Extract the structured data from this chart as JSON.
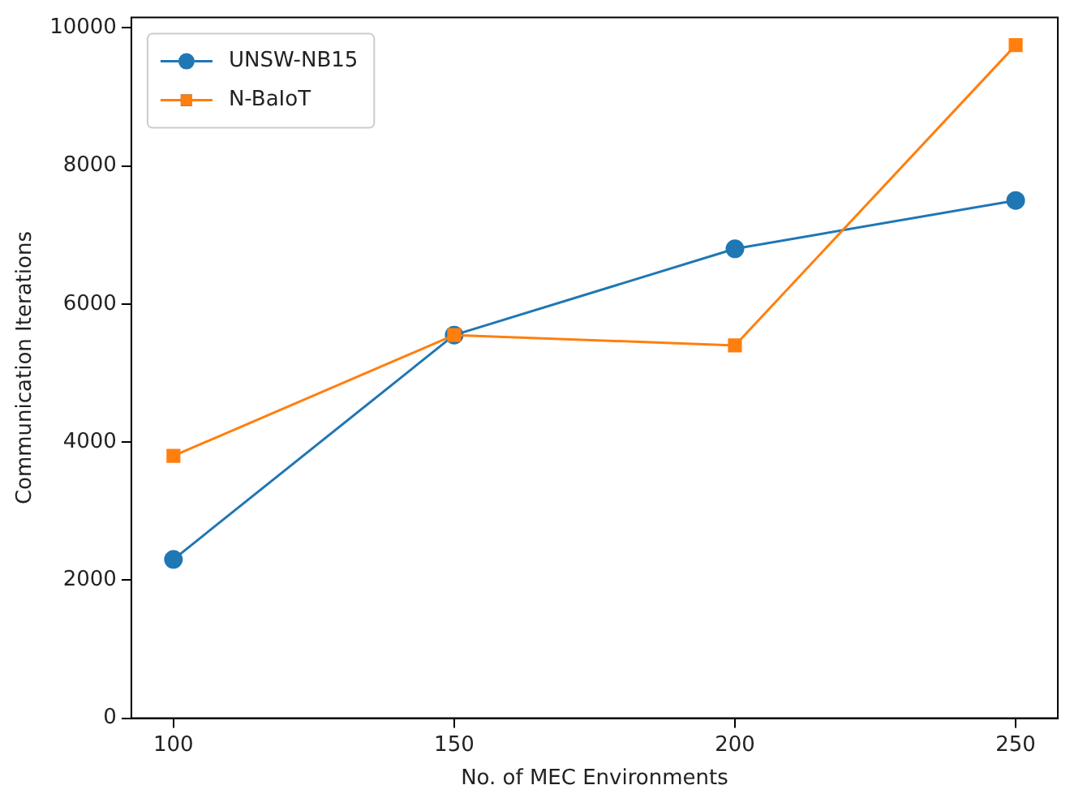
{
  "chart_data": {
    "type": "line",
    "xlabel": "No. of MEC Environments",
    "ylabel": "Communication Iterations",
    "x": [
      100,
      150,
      200,
      250
    ],
    "series": [
      {
        "name": "UNSW-NB15",
        "color": "#1f77b4",
        "marker": "circle",
        "values": [
          2300,
          5550,
          6800,
          7500
        ]
      },
      {
        "name": "N-BaIoT",
        "color": "#ff7f0e",
        "marker": "square",
        "values": [
          3800,
          5550,
          5400,
          9750
        ]
      }
    ],
    "xlim": [
      92.5,
      257.5
    ],
    "xticks": [
      100,
      150,
      200,
      250
    ],
    "ylim": [
      0,
      10150
    ],
    "yticks": [
      0,
      2000,
      4000,
      6000,
      8000,
      10000
    ],
    "grid": false,
    "legend": "top left",
    "line_style": "solid"
  }
}
